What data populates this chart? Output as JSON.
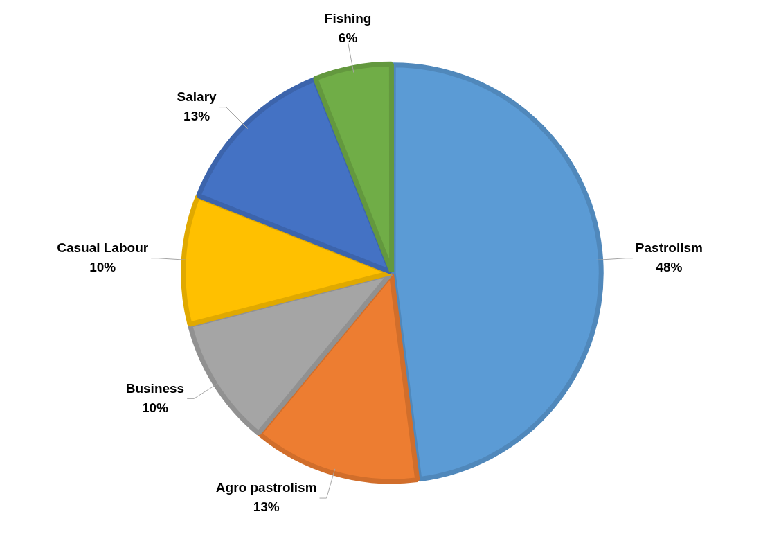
{
  "chart_data": {
    "type": "pie",
    "categories": [
      "Pastrolism",
      "Agro pastrolism",
      "Business",
      "Casual Labour",
      "Salary",
      "Fishing"
    ],
    "values": [
      48,
      13,
      10,
      10,
      13,
      6
    ],
    "value_labels": [
      "48%",
      "13%",
      "10%",
      "10%",
      "13%",
      "6%"
    ],
    "colors": [
      "#5b9bd5",
      "#ed7d31",
      "#a5a5a5",
      "#ffc000",
      "#4472c4",
      "#70ad47"
    ],
    "legend": false
  }
}
